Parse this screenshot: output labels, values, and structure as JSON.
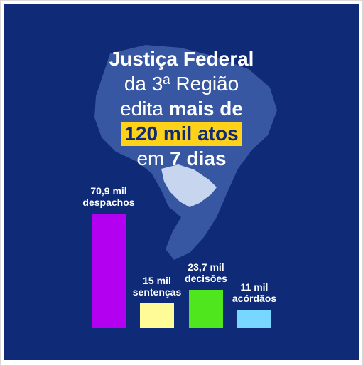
{
  "headline": {
    "line1": "Justiça Federal",
    "line2": "da 3ª Região",
    "line3_pre": "edita ",
    "line3_bold": "mais de",
    "line4_highlight": "120 mil atos",
    "line5_pre": "em ",
    "line5_bold": "7 dias"
  },
  "colors": {
    "background": "#0f2a76",
    "highlight": "#ffd21a",
    "map": "#3a5aa5",
    "map_region": "#c7d6ee"
  },
  "chart_data": {
    "type": "bar",
    "title": "",
    "xlabel": "",
    "ylabel": "",
    "ylim": [
      0,
      70.9
    ],
    "categories": [
      "despachos",
      "sentenças",
      "decisões",
      "acórdãos"
    ],
    "values": [
      70.9,
      15,
      23.7,
      11
    ],
    "value_labels": [
      "70,9 mil",
      "15 mil",
      "23,7 mil",
      "11 mil"
    ],
    "colors": [
      "#b400f0",
      "#fffb96",
      "#50e61e",
      "#78d7ff"
    ]
  }
}
